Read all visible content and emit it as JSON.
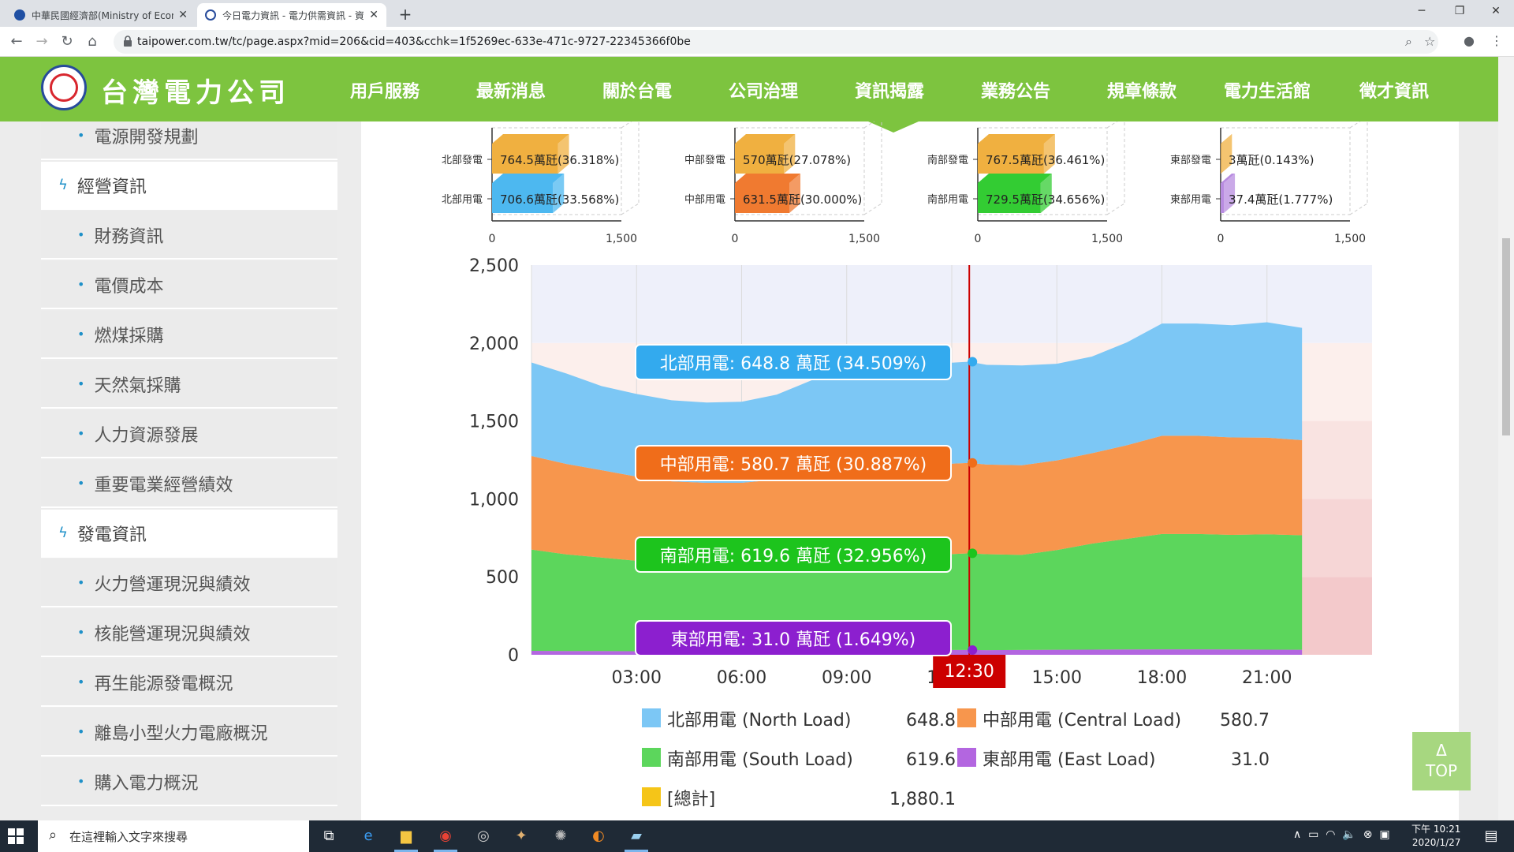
{
  "browser": {
    "tabs": [
      {
        "title": "中華民國經濟部(Ministry of Econ",
        "active": false
      },
      {
        "title": "今日電力資訊 - 電力供需資訊 - 資",
        "active": true
      }
    ],
    "url": "taipower.com.tw/tc/page.aspx?mid=206&cid=403&cchk=1f5269ec-633e-471c-9727-22345366f0be"
  },
  "site": {
    "brand": "台灣電力公司",
    "nav": [
      "用戶服務",
      "最新消息",
      "關於台電",
      "公司治理",
      "資訊揭露",
      "業務公告",
      "規章條款",
      "電力生活館",
      "徵才資訊"
    ],
    "active_nav": "資訊揭露"
  },
  "sidebar": {
    "items": [
      {
        "label": "電源開發規劃",
        "kind": "sub"
      },
      {
        "label": "經營資訊",
        "kind": "group"
      },
      {
        "label": "財務資訊",
        "kind": "sub"
      },
      {
        "label": "電價成本",
        "kind": "sub"
      },
      {
        "label": "燃煤採購",
        "kind": "sub"
      },
      {
        "label": "天然氣採購",
        "kind": "sub"
      },
      {
        "label": "人力資源發展",
        "kind": "sub"
      },
      {
        "label": "重要電業經營績效",
        "kind": "sub"
      },
      {
        "label": "發電資訊",
        "kind": "group"
      },
      {
        "label": "火力營運現況與績效",
        "kind": "sub"
      },
      {
        "label": "核能營運現況與績效",
        "kind": "sub"
      },
      {
        "label": "再生能源發電概況",
        "kind": "sub"
      },
      {
        "label": "離島小型火力電廠概況",
        "kind": "sub"
      },
      {
        "label": "購入電力概況",
        "kind": "sub"
      }
    ]
  },
  "colors": {
    "north": "#7cc7f5",
    "central": "#f7964d",
    "south": "#5cd65c",
    "east": "#b366e0",
    "total": "#f5c518",
    "header_green": "#7dc43f"
  },
  "chart_data": [
    {
      "type": "bar",
      "region": "北部",
      "categories": [
        "北部發電",
        "北部用電"
      ],
      "values": [
        764.5,
        706.6
      ],
      "labels": [
        "764.5萬瓩(36.318%)",
        "706.6萬瓩(33.568%)"
      ],
      "xlim": [
        0,
        1500
      ],
      "ticks": [
        "0",
        "1,500"
      ]
    },
    {
      "type": "bar",
      "region": "中部",
      "categories": [
        "中部發電",
        "中部用電"
      ],
      "values": [
        570,
        631.5
      ],
      "labels": [
        "570萬瓩(27.078%)",
        "631.5萬瓩(30.000%)"
      ],
      "xlim": [
        0,
        1500
      ],
      "ticks": [
        "0",
        "1,500"
      ]
    },
    {
      "type": "bar",
      "region": "南部",
      "categories": [
        "南部發電",
        "南部用電"
      ],
      "values": [
        767.5,
        729.5
      ],
      "labels": [
        "767.5萬瓩(36.461%)",
        "729.5萬瓩(34.656%)"
      ],
      "xlim": [
        0,
        1500
      ],
      "ticks": [
        "0",
        "1,500"
      ]
    },
    {
      "type": "bar",
      "region": "東部",
      "categories": [
        "東部發電",
        "東部用電"
      ],
      "values": [
        3,
        37.4
      ],
      "labels": [
        "3萬瓩(0.143%)",
        "37.4萬瓩(1.777%)"
      ],
      "xlim": [
        0,
        1500
      ],
      "ticks": [
        "0",
        "1,500"
      ]
    },
    {
      "type": "area",
      "stacked": true,
      "ylim": [
        0,
        2500
      ],
      "yticks": [
        "0",
        "500",
        "1,000",
        "1,500",
        "2,000",
        "2,500"
      ],
      "xlim": [
        0,
        24
      ],
      "xticks": [
        "03:00",
        "06:00",
        "09:00",
        "12:00",
        "15:00",
        "18:00",
        "21:00"
      ],
      "xtick_hours": [
        3,
        6,
        9,
        12,
        15,
        18,
        21
      ],
      "hours": [
        0,
        1,
        2,
        3,
        4,
        5,
        6,
        7,
        8,
        9,
        10,
        11,
        12,
        12.5,
        13,
        14,
        15,
        16,
        17,
        18,
        19,
        20,
        21,
        22
      ],
      "series": [
        {
          "name": "東部用電 (East Load)",
          "key": "east",
          "values": [
            25,
            24,
            24,
            23,
            23,
            23,
            23,
            24,
            26,
            28,
            30,
            31,
            31,
            31,
            30,
            31,
            32,
            33,
            34,
            35,
            35,
            34,
            33,
            32
          ]
        },
        {
          "name": "南部用電 (South Load)",
          "key": "south",
          "values": [
            650,
            620,
            600,
            580,
            560,
            550,
            550,
            560,
            590,
            610,
            620,
            620,
            615,
            620,
            615,
            610,
            640,
            680,
            710,
            740,
            740,
            735,
            740,
            735
          ]
        },
        {
          "name": "中部用電 (Central Load)",
          "key": "central",
          "values": [
            600,
            580,
            560,
            540,
            530,
            530,
            530,
            540,
            555,
            570,
            580,
            583,
            580,
            580,
            575,
            575,
            575,
            580,
            600,
            630,
            630,
            625,
            620,
            610
          ]
        },
        {
          "name": "北部用電 (North Load)",
          "key": "north",
          "values": [
            600,
            580,
            540,
            530,
            520,
            515,
            520,
            545,
            590,
            630,
            660,
            655,
            648,
            649,
            640,
            640,
            620,
            620,
            660,
            720,
            720,
            720,
            740,
            720
          ]
        }
      ],
      "cursor": {
        "time": "12:30",
        "hour": 12.5
      },
      "tooltips": [
        {
          "key": "north",
          "text": "北部用電: 648.8 萬瓩 (34.509%)"
        },
        {
          "key": "central",
          "text": "中部用電: 580.7 萬瓩 (30.887%)"
        },
        {
          "key": "south",
          "text": "南部用電: 619.6 萬瓩 (32.956%)"
        },
        {
          "key": "east",
          "text": "東部用電: 31.0 萬瓩 (1.649%)"
        }
      ],
      "legend": [
        {
          "key": "north",
          "label": "北部用電 (North Load)",
          "value": "648.8"
        },
        {
          "key": "central",
          "label": "中部用電 (Central Load)",
          "value": "580.7"
        },
        {
          "key": "south",
          "label": "南部用電 (South Load)",
          "value": "619.6"
        },
        {
          "key": "east",
          "label": "東部用電 (East Load)",
          "value": "31.0"
        },
        {
          "key": "total",
          "label": "[總計]",
          "value": "1,880.1"
        }
      ]
    }
  ],
  "to_top": {
    "arrow": "Δ",
    "label": "TOP"
  },
  "taskbar": {
    "search_placeholder": "在這裡輸入文字來搜尋",
    "clock_period": "下午 10:21",
    "clock_date": "2020/1/27"
  }
}
